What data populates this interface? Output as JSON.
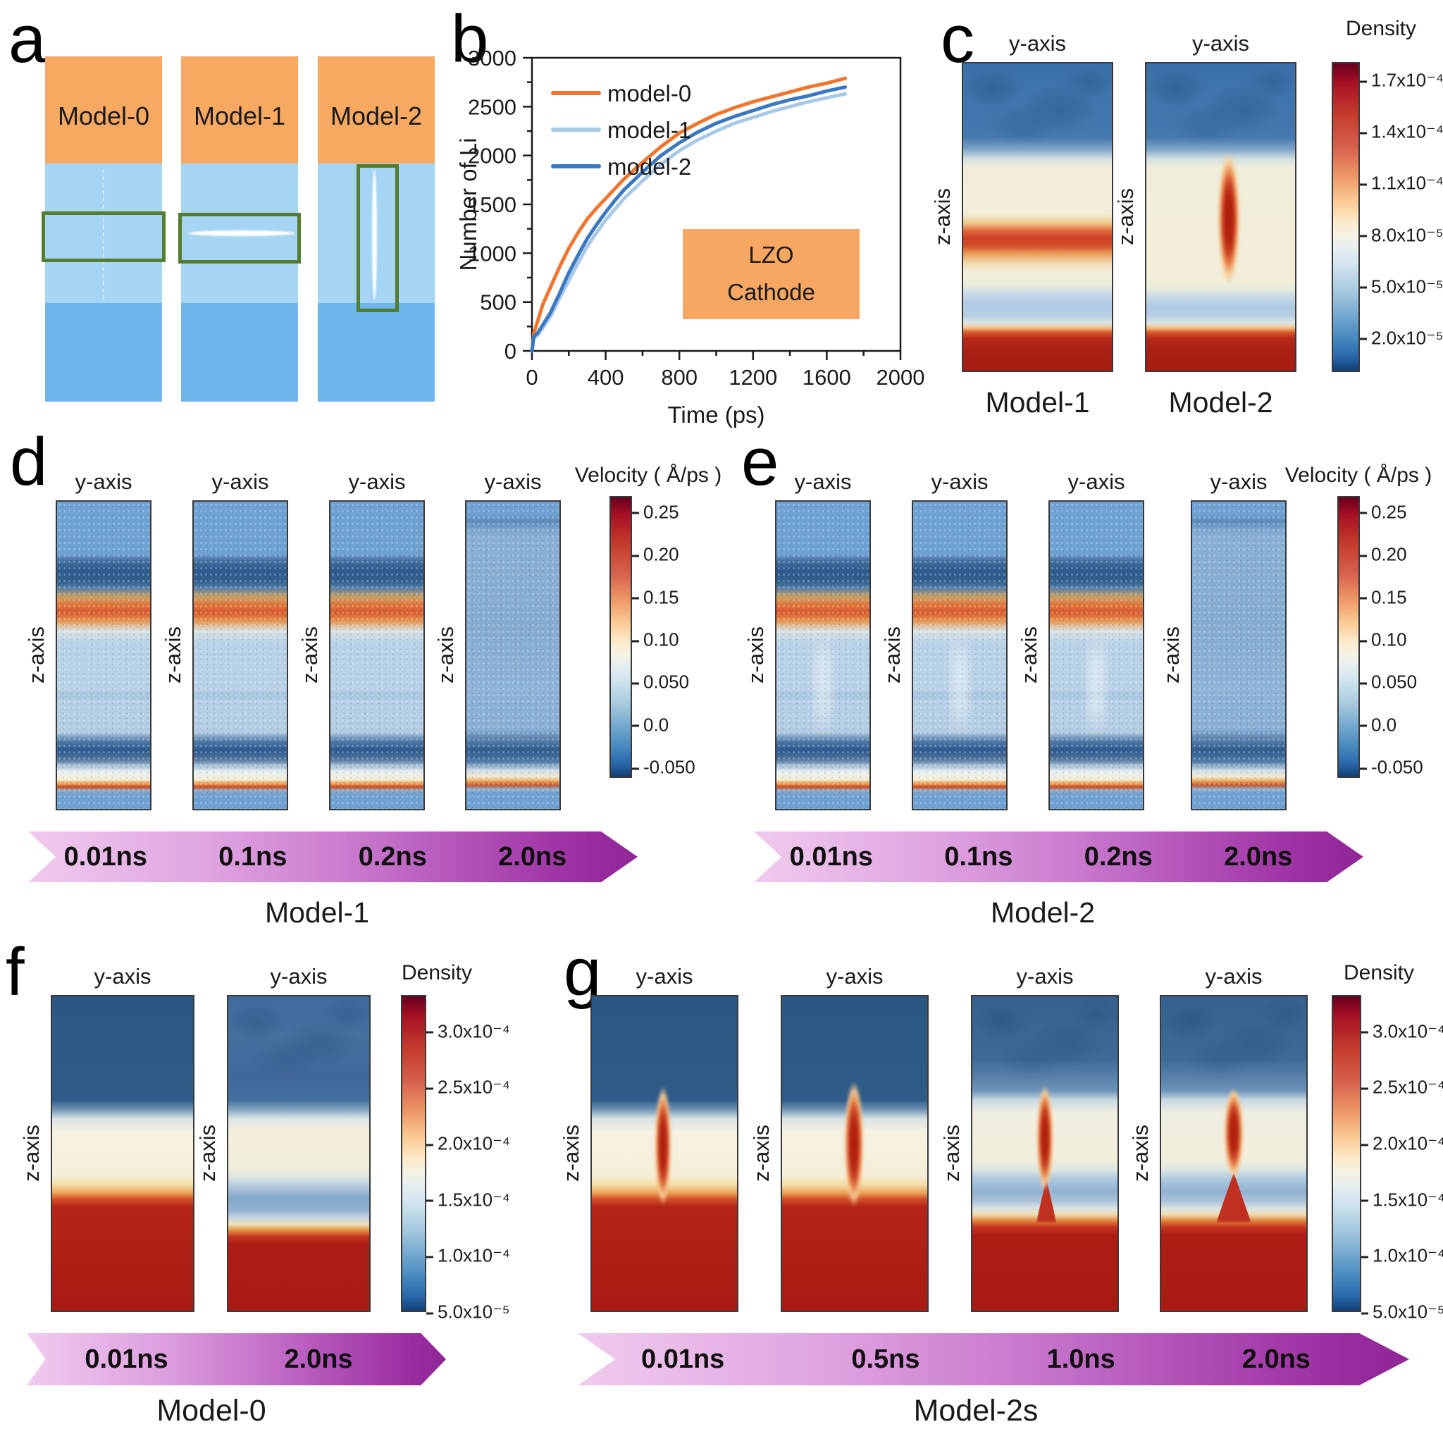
{
  "figure": {
    "panel_letters": {
      "a": "a",
      "b": "b",
      "c": "c",
      "d": "d",
      "e": "e",
      "f": "f",
      "g": "g"
    }
  },
  "labels": {
    "y_axis": "y-axis",
    "z_axis": "z-axis",
    "density": "Density",
    "velocity": "Velocity ( Å/ps )"
  },
  "panel_a": {
    "models": [
      {
        "name": "Model-0",
        "defect": "no crack (pristine reference)"
      },
      {
        "name": "Model-1",
        "defect": "horizontal crack"
      },
      {
        "name": "Model-2",
        "defect": "vertical crack"
      }
    ],
    "colors": {
      "cathode_block": "#F7A962",
      "electrolyte_upper": "#A5D5F3",
      "electrolyte_lower": "#6FB6EA",
      "defect_box_border": "#567D2F"
    }
  },
  "panel_b": {
    "annotation": [
      "LZO",
      "Cathode"
    ],
    "annotation_bg": "#F7A762",
    "legend": [
      "model-0",
      "model-1",
      "model-2"
    ]
  },
  "panel_c": {
    "colorbar_title": "Density",
    "colorbar_ticks": [
      "1.7x10⁻⁴",
      "1.4x10⁻⁴",
      "1.1x10⁻⁴",
      "8.0x10⁻⁵",
      "5.0x10⁻⁵",
      "2.0x10⁻⁵"
    ],
    "captions": [
      "Model-1",
      "Model-2"
    ]
  },
  "panel_d": {
    "colorbar_title": "Velocity ( Å/ps )",
    "colorbar_ticks": [
      "0.25",
      "0.20",
      "0.15",
      "0.10",
      "0.050",
      "0.0",
      "-0.050"
    ],
    "times": [
      "0.01ns",
      "0.1ns",
      "0.2ns",
      "2.0ns"
    ],
    "caption": "Model-1"
  },
  "panel_e": {
    "colorbar_title": "Velocity ( Å/ps )",
    "colorbar_ticks": [
      "0.25",
      "0.20",
      "0.15",
      "0.10",
      "0.050",
      "0.0",
      "-0.050"
    ],
    "times": [
      "0.01ns",
      "0.1ns",
      "0.2ns",
      "2.0ns"
    ],
    "caption": "Model-2"
  },
  "panel_f": {
    "colorbar_title": "Density",
    "colorbar_ticks": [
      "3.0x10⁻⁴",
      "2.5x10⁻⁴",
      "2.0x10⁻⁴",
      "1.5x10⁻⁴",
      "1.0x10⁻⁴",
      "5.0x10⁻⁵"
    ],
    "times": [
      "0.01ns",
      "2.0ns"
    ],
    "caption": "Model-0"
  },
  "panel_g": {
    "colorbar_title": "Density",
    "colorbar_ticks": [
      "3.0x10⁻⁴",
      "2.5x10⁻⁴",
      "2.0x10⁻⁴",
      "1.5x10⁻⁴",
      "1.0x10⁻⁴",
      "5.0x10⁻⁵"
    ],
    "times": [
      "0.01ns",
      "0.5ns",
      "1.0ns",
      "2.0ns"
    ],
    "caption": "Model-2s"
  },
  "chart_data": {
    "type": "line",
    "title": "",
    "xlabel": "Time (ps)",
    "ylabel": "Number of Li",
    "xlim": [
      0,
      2000
    ],
    "ylim": [
      0,
      3000
    ],
    "x_ticks": [
      0,
      400,
      800,
      1200,
      1600,
      2000
    ],
    "y_ticks": [
      0,
      500,
      1000,
      1500,
      2000,
      2500,
      3000
    ],
    "x_minor_step": 200,
    "y_minor_step": 250,
    "grid": false,
    "legend_position": "top-left",
    "annotation": [
      "LZO",
      "Cathode"
    ],
    "x": [
      0,
      10,
      30,
      60,
      100,
      150,
      200,
      250,
      300,
      350,
      400,
      450,
      500,
      600,
      700,
      800,
      900,
      1000,
      1100,
      1200,
      1300,
      1400,
      1500,
      1600,
      1700
    ],
    "series": [
      {
        "name": "model-0",
        "color": "#F2752E",
        "y": [
          0,
          180,
          300,
          480,
          650,
          860,
          1050,
          1210,
          1350,
          1460,
          1560,
          1660,
          1760,
          1930,
          2090,
          2230,
          2330,
          2420,
          2490,
          2550,
          2600,
          2650,
          2700,
          2740,
          2790
        ]
      },
      {
        "name": "model-1",
        "color": "#A8C8E8",
        "y": [
          0,
          130,
          160,
          240,
          350,
          540,
          720,
          900,
          1070,
          1210,
          1340,
          1450,
          1560,
          1740,
          1910,
          2050,
          2160,
          2250,
          2330,
          2390,
          2450,
          2500,
          2550,
          2590,
          2630
        ]
      },
      {
        "name": "model-2",
        "color": "#3B78C2",
        "y": [
          0,
          150,
          180,
          270,
          390,
          590,
          800,
          980,
          1150,
          1290,
          1420,
          1540,
          1650,
          1830,
          2000,
          2130,
          2240,
          2330,
          2400,
          2460,
          2520,
          2570,
          2610,
          2660,
          2700
        ]
      }
    ]
  }
}
